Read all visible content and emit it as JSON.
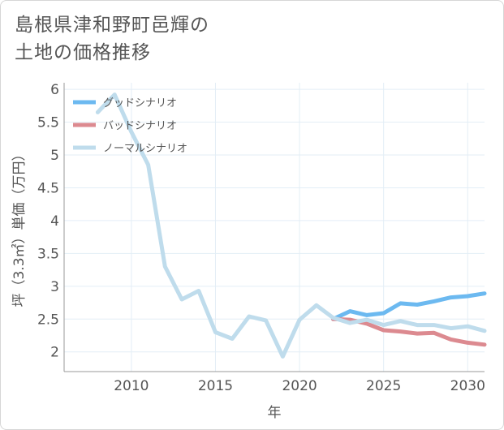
{
  "title_lines": [
    "島根県津和野町邑輝の",
    "土地の価格推移"
  ],
  "chart_data": {
    "type": "line",
    "xlabel": "年",
    "ylabel": "坪（3.3㎡）単価（万円）",
    "xlim": [
      2006,
      2031
    ],
    "ylim": [
      1.7,
      6.1
    ],
    "xticks": [
      2010,
      2015,
      2020,
      2025,
      2030
    ],
    "yticks": [
      2,
      2.5,
      3,
      3.5,
      4,
      4.5,
      5,
      5.5,
      6
    ],
    "ytick_labels": [
      "2",
      "2.5",
      "3",
      "3.5",
      "4",
      "4.5",
      "5",
      "5.5",
      "6"
    ],
    "grid": true,
    "legend_position": "top-left",
    "series": [
      {
        "name": "グッドシナリオ",
        "color": "#6cb9f0",
        "x": [
          2022,
          2023,
          2024,
          2025,
          2026,
          2027,
          2028,
          2029,
          2030,
          2031
        ],
        "y": [
          2.5,
          2.62,
          2.56,
          2.59,
          2.74,
          2.72,
          2.77,
          2.83,
          2.85,
          2.89
        ]
      },
      {
        "name": "バッドシナリオ",
        "color": "#dc8a90",
        "x": [
          2022,
          2023,
          2024,
          2025,
          2026,
          2027,
          2028,
          2029,
          2030,
          2031
        ],
        "y": [
          2.5,
          2.49,
          2.43,
          2.33,
          2.31,
          2.28,
          2.29,
          2.19,
          2.14,
          2.11
        ]
      },
      {
        "name": "ノーマルシナリオ",
        "color": "#bfdcec",
        "x": [
          2008,
          2009,
          2010,
          2011,
          2012,
          2013,
          2014,
          2015,
          2016,
          2017,
          2018,
          2019,
          2020,
          2021,
          2022,
          2023,
          2024,
          2025,
          2026,
          2027,
          2028,
          2029,
          2030,
          2031
        ],
        "y": [
          5.65,
          5.92,
          5.35,
          4.85,
          3.3,
          2.8,
          2.93,
          2.3,
          2.2,
          2.54,
          2.48,
          1.93,
          2.49,
          2.71,
          2.52,
          2.44,
          2.49,
          2.41,
          2.47,
          2.41,
          2.41,
          2.36,
          2.39,
          2.32
        ]
      }
    ]
  }
}
